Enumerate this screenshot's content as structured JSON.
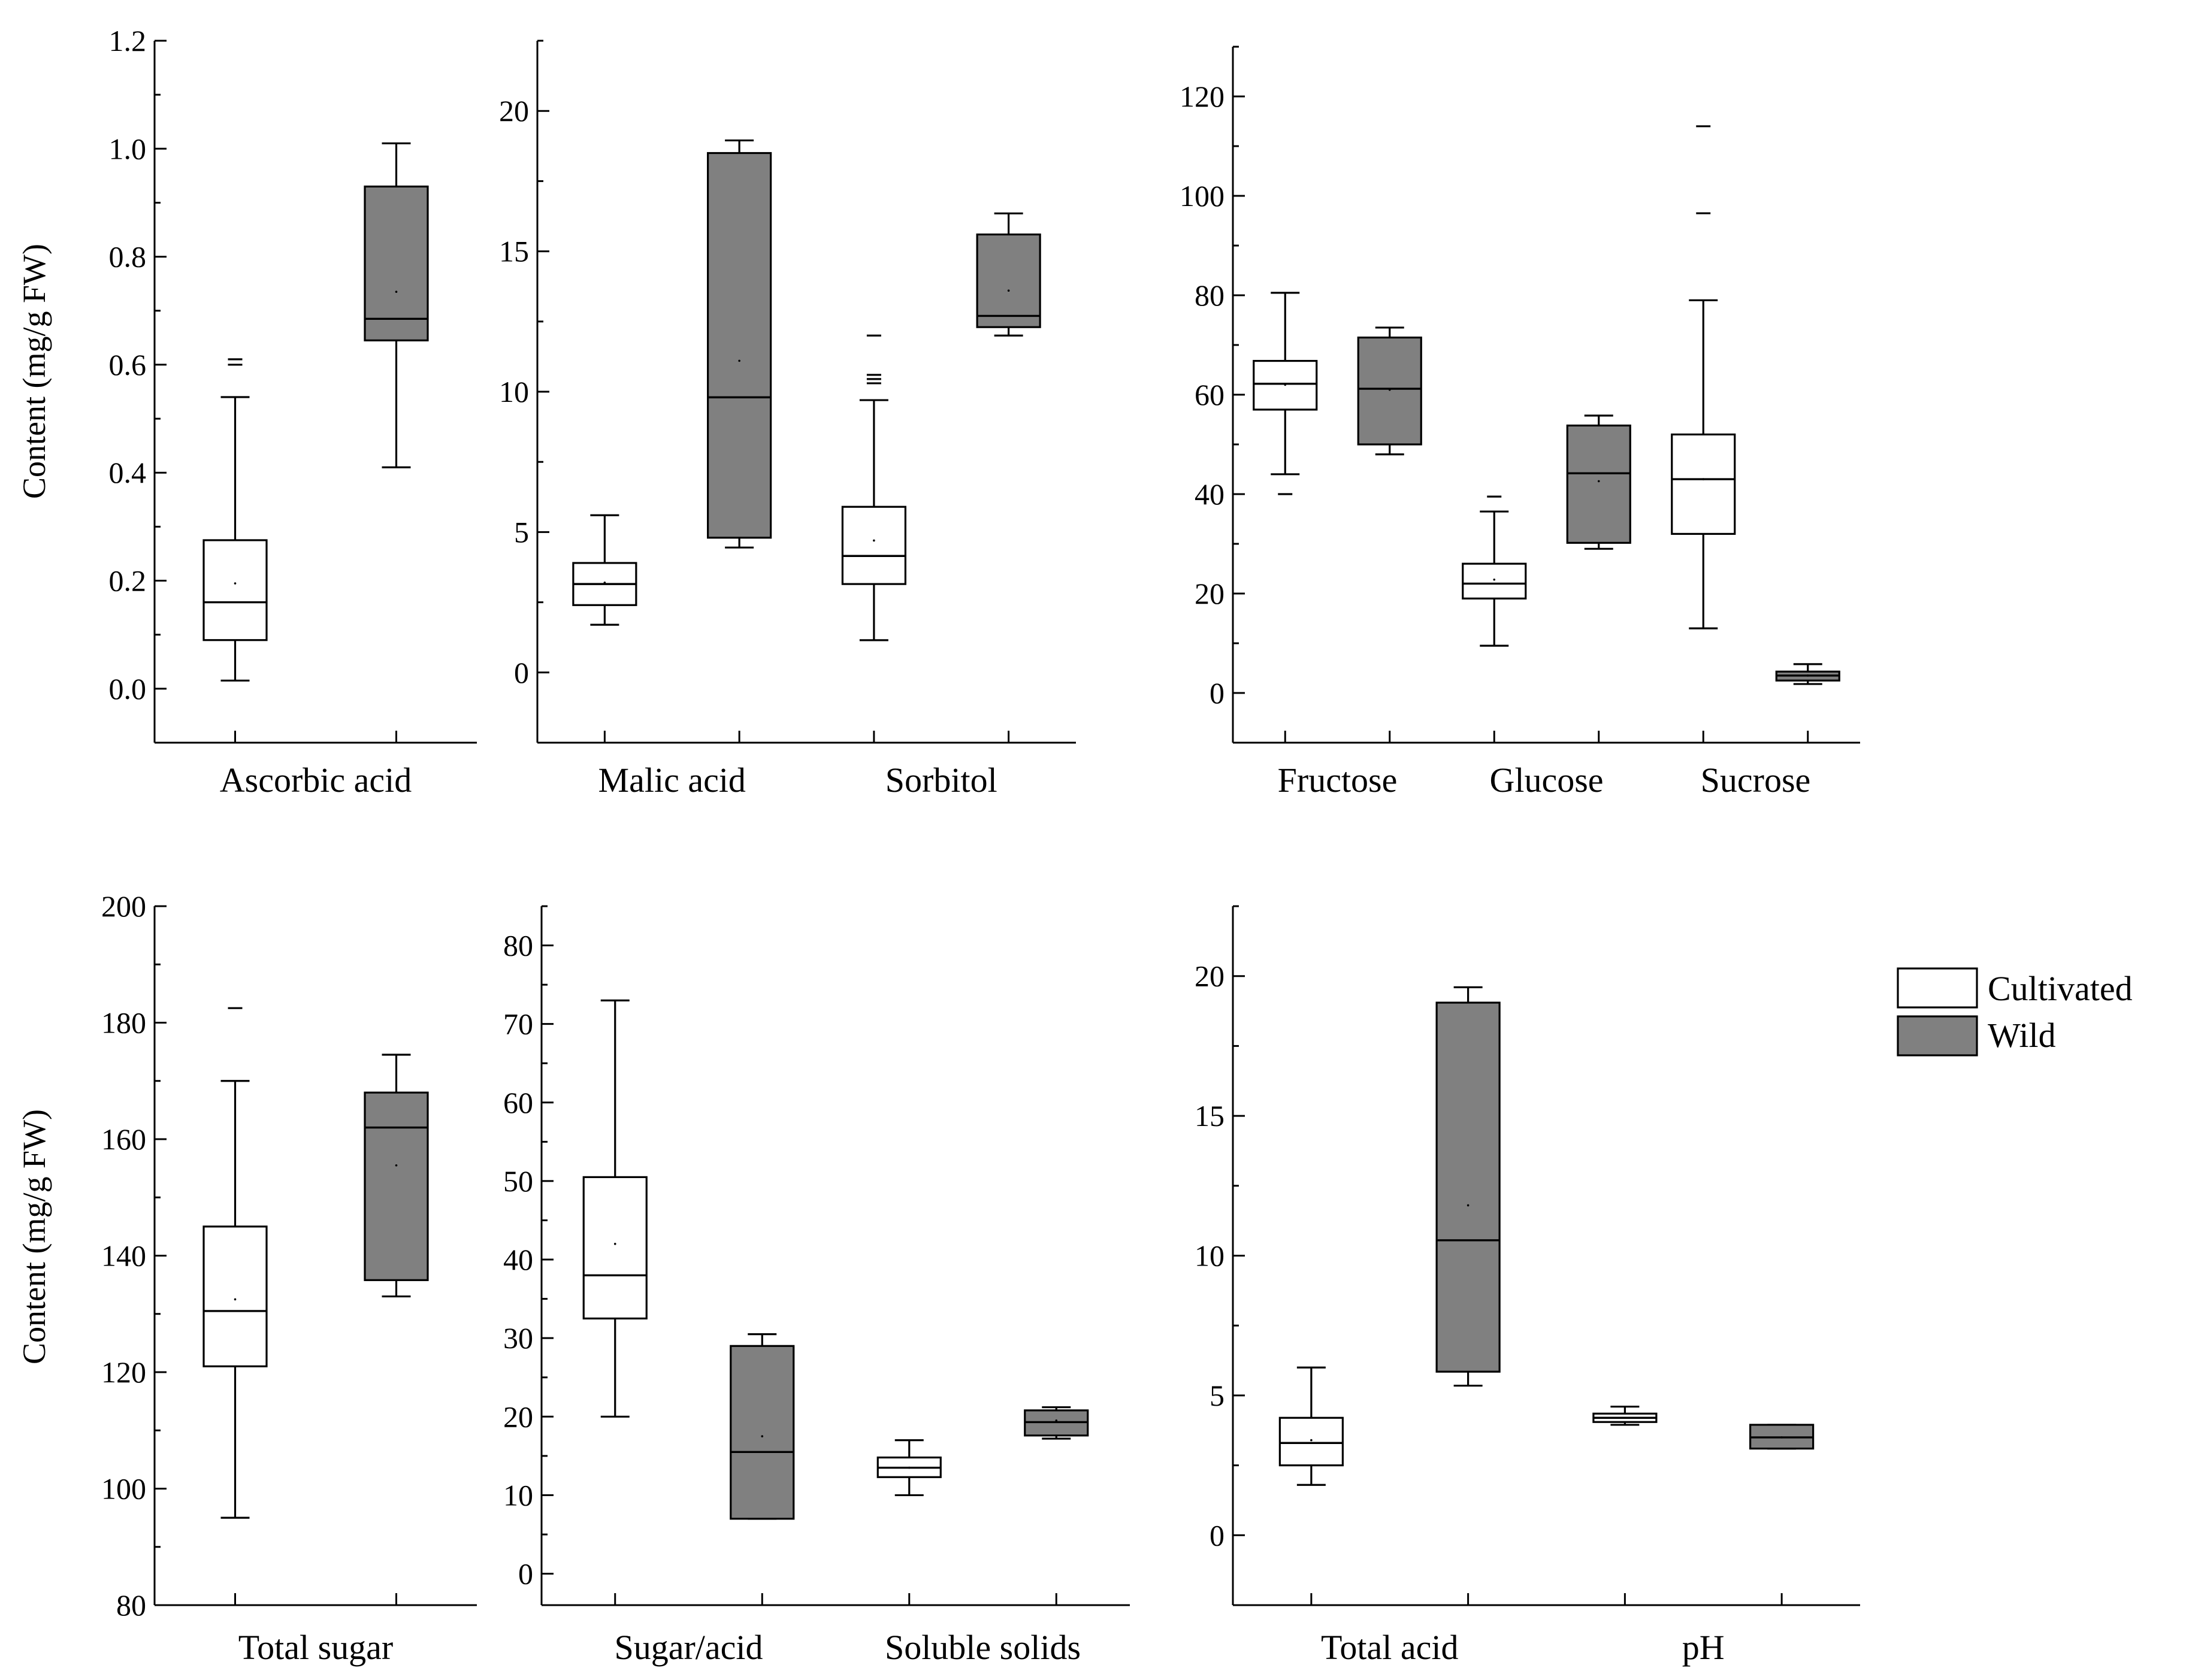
{
  "figure": {
    "y_axis_label": "Content (mg/g FW)",
    "legend": [
      {
        "label": "Cultivated",
        "color": "#ffffff"
      },
      {
        "label": "Wild",
        "color": "#808080"
      }
    ]
  },
  "chart_data": [
    {
      "type": "box",
      "ylim": [
        -0.1,
        1.2
      ],
      "yticks": [
        0.0,
        0.2,
        0.4,
        0.6,
        0.8,
        1.0,
        1.2
      ],
      "tick_decimals": 1,
      "ylabel": "Content (mg/g FW)",
      "categories": [
        "Ascorbic acid"
      ],
      "series": [
        {
          "name": "Cultivated",
          "color": "#ffffff",
          "boxes": [
            {
              "min": 0.015,
              "q1": 0.09,
              "median": 0.16,
              "q3": 0.275,
              "max": 0.54,
              "mean": 0.195,
              "outliers": [
                0.6,
                0.61
              ]
            }
          ]
        },
        {
          "name": "Wild",
          "color": "#808080",
          "boxes": [
            {
              "min": 0.41,
              "q1": 0.645,
              "median": 0.685,
              "q3": 0.93,
              "max": 1.01,
              "mean": 0.735,
              "outliers": []
            }
          ]
        }
      ]
    },
    {
      "type": "box",
      "ylim": [
        -2.5,
        22.5
      ],
      "yticks": [
        0,
        5,
        10,
        15,
        20
      ],
      "tick_decimals": 0,
      "ylabel": "",
      "categories": [
        "Malic acid",
        "Sorbitol"
      ],
      "series": [
        {
          "name": "Cultivated",
          "color": "#ffffff",
          "boxes": [
            {
              "min": 1.7,
              "q1": 2.4,
              "median": 3.15,
              "q3": 3.9,
              "max": 5.6,
              "mean": 3.2,
              "outliers": []
            },
            {
              "min": 1.15,
              "q1": 3.15,
              "median": 4.15,
              "q3": 5.9,
              "max": 9.7,
              "mean": 4.7,
              "outliers": [
                10.3,
                10.45,
                10.6,
                12.0
              ]
            }
          ]
        },
        {
          "name": "Wild",
          "color": "#808080",
          "boxes": [
            {
              "min": 4.45,
              "q1": 4.8,
              "median": 9.8,
              "q3": 18.5,
              "max": 18.95,
              "mean": 11.1,
              "outliers": []
            },
            {
              "min": 12.0,
              "q1": 12.3,
              "median": 12.7,
              "q3": 15.6,
              "max": 16.35,
              "mean": 13.6,
              "outliers": []
            }
          ]
        }
      ]
    },
    {
      "type": "box",
      "ylim": [
        -10,
        130
      ],
      "yticks": [
        0,
        20,
        40,
        60,
        80,
        100,
        120
      ],
      "tick_decimals": 0,
      "ylabel": "",
      "categories": [
        "Fructose",
        "Glucose",
        "Sucrose"
      ],
      "series": [
        {
          "name": "Cultivated",
          "color": "#ffffff",
          "boxes": [
            {
              "min": 44,
              "q1": 57,
              "median": 62.2,
              "q3": 66.8,
              "max": 80.5,
              "mean": 62,
              "outliers": [
                40
              ]
            },
            {
              "min": 9.5,
              "q1": 19,
              "median": 22,
              "q3": 26,
              "max": 36.5,
              "mean": 22.8,
              "outliers": [
                39.5
              ]
            },
            {
              "min": 13,
              "q1": 32,
              "median": 43,
              "q3": 52,
              "max": 79,
              "mean": 43,
              "outliers": [
                96.5,
                114
              ]
            }
          ]
        },
        {
          "name": "Wild",
          "color": "#808080",
          "boxes": [
            {
              "min": 48,
              "q1": 50,
              "median": 61.2,
              "q3": 71.5,
              "max": 73.5,
              "mean": 61,
              "outliers": []
            },
            {
              "min": 29,
              "q1": 30.2,
              "median": 44.2,
              "q3": 53.8,
              "max": 55.8,
              "mean": 42.6,
              "outliers": []
            },
            {
              "min": 1.8,
              "q1": 2.5,
              "median": 3.5,
              "q3": 4.3,
              "max": 5.8,
              "mean": 3.5,
              "outliers": []
            }
          ]
        }
      ]
    },
    {
      "type": "box",
      "ylim": [
        80,
        200
      ],
      "yticks": [
        80,
        100,
        120,
        140,
        160,
        180,
        200
      ],
      "tick_decimals": 0,
      "ylabel": "Content (mg/g FW)",
      "categories": [
        "Total sugar"
      ],
      "series": [
        {
          "name": "Cultivated",
          "color": "#ffffff",
          "boxes": [
            {
              "min": 95,
              "q1": 121,
              "median": 130.5,
              "q3": 145,
              "max": 170,
              "mean": 132.5,
              "outliers": [
                182.5
              ]
            }
          ]
        },
        {
          "name": "Wild",
          "color": "#808080",
          "boxes": [
            {
              "min": 133,
              "q1": 135.8,
              "median": 162,
              "q3": 168,
              "max": 174.5,
              "mean": 155.5,
              "outliers": []
            }
          ]
        }
      ]
    },
    {
      "type": "box",
      "ylim": [
        -4,
        85
      ],
      "yticks": [
        0,
        10,
        20,
        30,
        40,
        50,
        60,
        70,
        80
      ],
      "tick_decimals": 0,
      "ylabel": "",
      "categories": [
        "Sugar/acid",
        "Soluble solids"
      ],
      "series": [
        {
          "name": "Cultivated",
          "color": "#ffffff",
          "boxes": [
            {
              "min": 20,
              "q1": 32.5,
              "median": 38,
              "q3": 50.5,
              "max": 73,
              "mean": 42,
              "outliers": []
            },
            {
              "min": 10,
              "q1": 12.3,
              "median": 13.5,
              "q3": 14.8,
              "max": 17,
              "mean": 13.5,
              "outliers": []
            }
          ]
        },
        {
          "name": "Wild",
          "color": "#808080",
          "boxes": [
            {
              "min": 7,
              "q1": 7,
              "median": 15.5,
              "q3": 29,
              "max": 30.5,
              "mean": 17.5,
              "outliers": []
            },
            {
              "min": 17.2,
              "q1": 17.6,
              "median": 19.3,
              "q3": 20.8,
              "max": 21.2,
              "mean": 19.5,
              "outliers": []
            }
          ]
        }
      ]
    },
    {
      "type": "box",
      "ylim": [
        -2.5,
        22.5
      ],
      "yticks": [
        0,
        5,
        10,
        15,
        20
      ],
      "tick_decimals": 0,
      "ylabel": "",
      "categories": [
        "Total acid",
        "pH"
      ],
      "series": [
        {
          "name": "Cultivated",
          "color": "#ffffff",
          "boxes": [
            {
              "min": 1.8,
              "q1": 2.5,
              "median": 3.3,
              "q3": 4.2,
              "max": 6.0,
              "mean": 3.4,
              "outliers": []
            },
            {
              "min": 3.95,
              "q1": 4.05,
              "median": 4.2,
              "q3": 4.35,
              "max": 4.6,
              "mean": 4.2,
              "outliers": []
            }
          ]
        },
        {
          "name": "Wild",
          "color": "#808080",
          "boxes": [
            {
              "min": 5.35,
              "q1": 5.85,
              "median": 10.55,
              "q3": 19.05,
              "max": 19.6,
              "mean": 11.8,
              "outliers": []
            },
            {
              "min": 3.1,
              "q1": 3.1,
              "median": 3.5,
              "q3": 3.95,
              "max": 3.95,
              "mean": 3.5,
              "outliers": []
            }
          ]
        }
      ]
    }
  ]
}
